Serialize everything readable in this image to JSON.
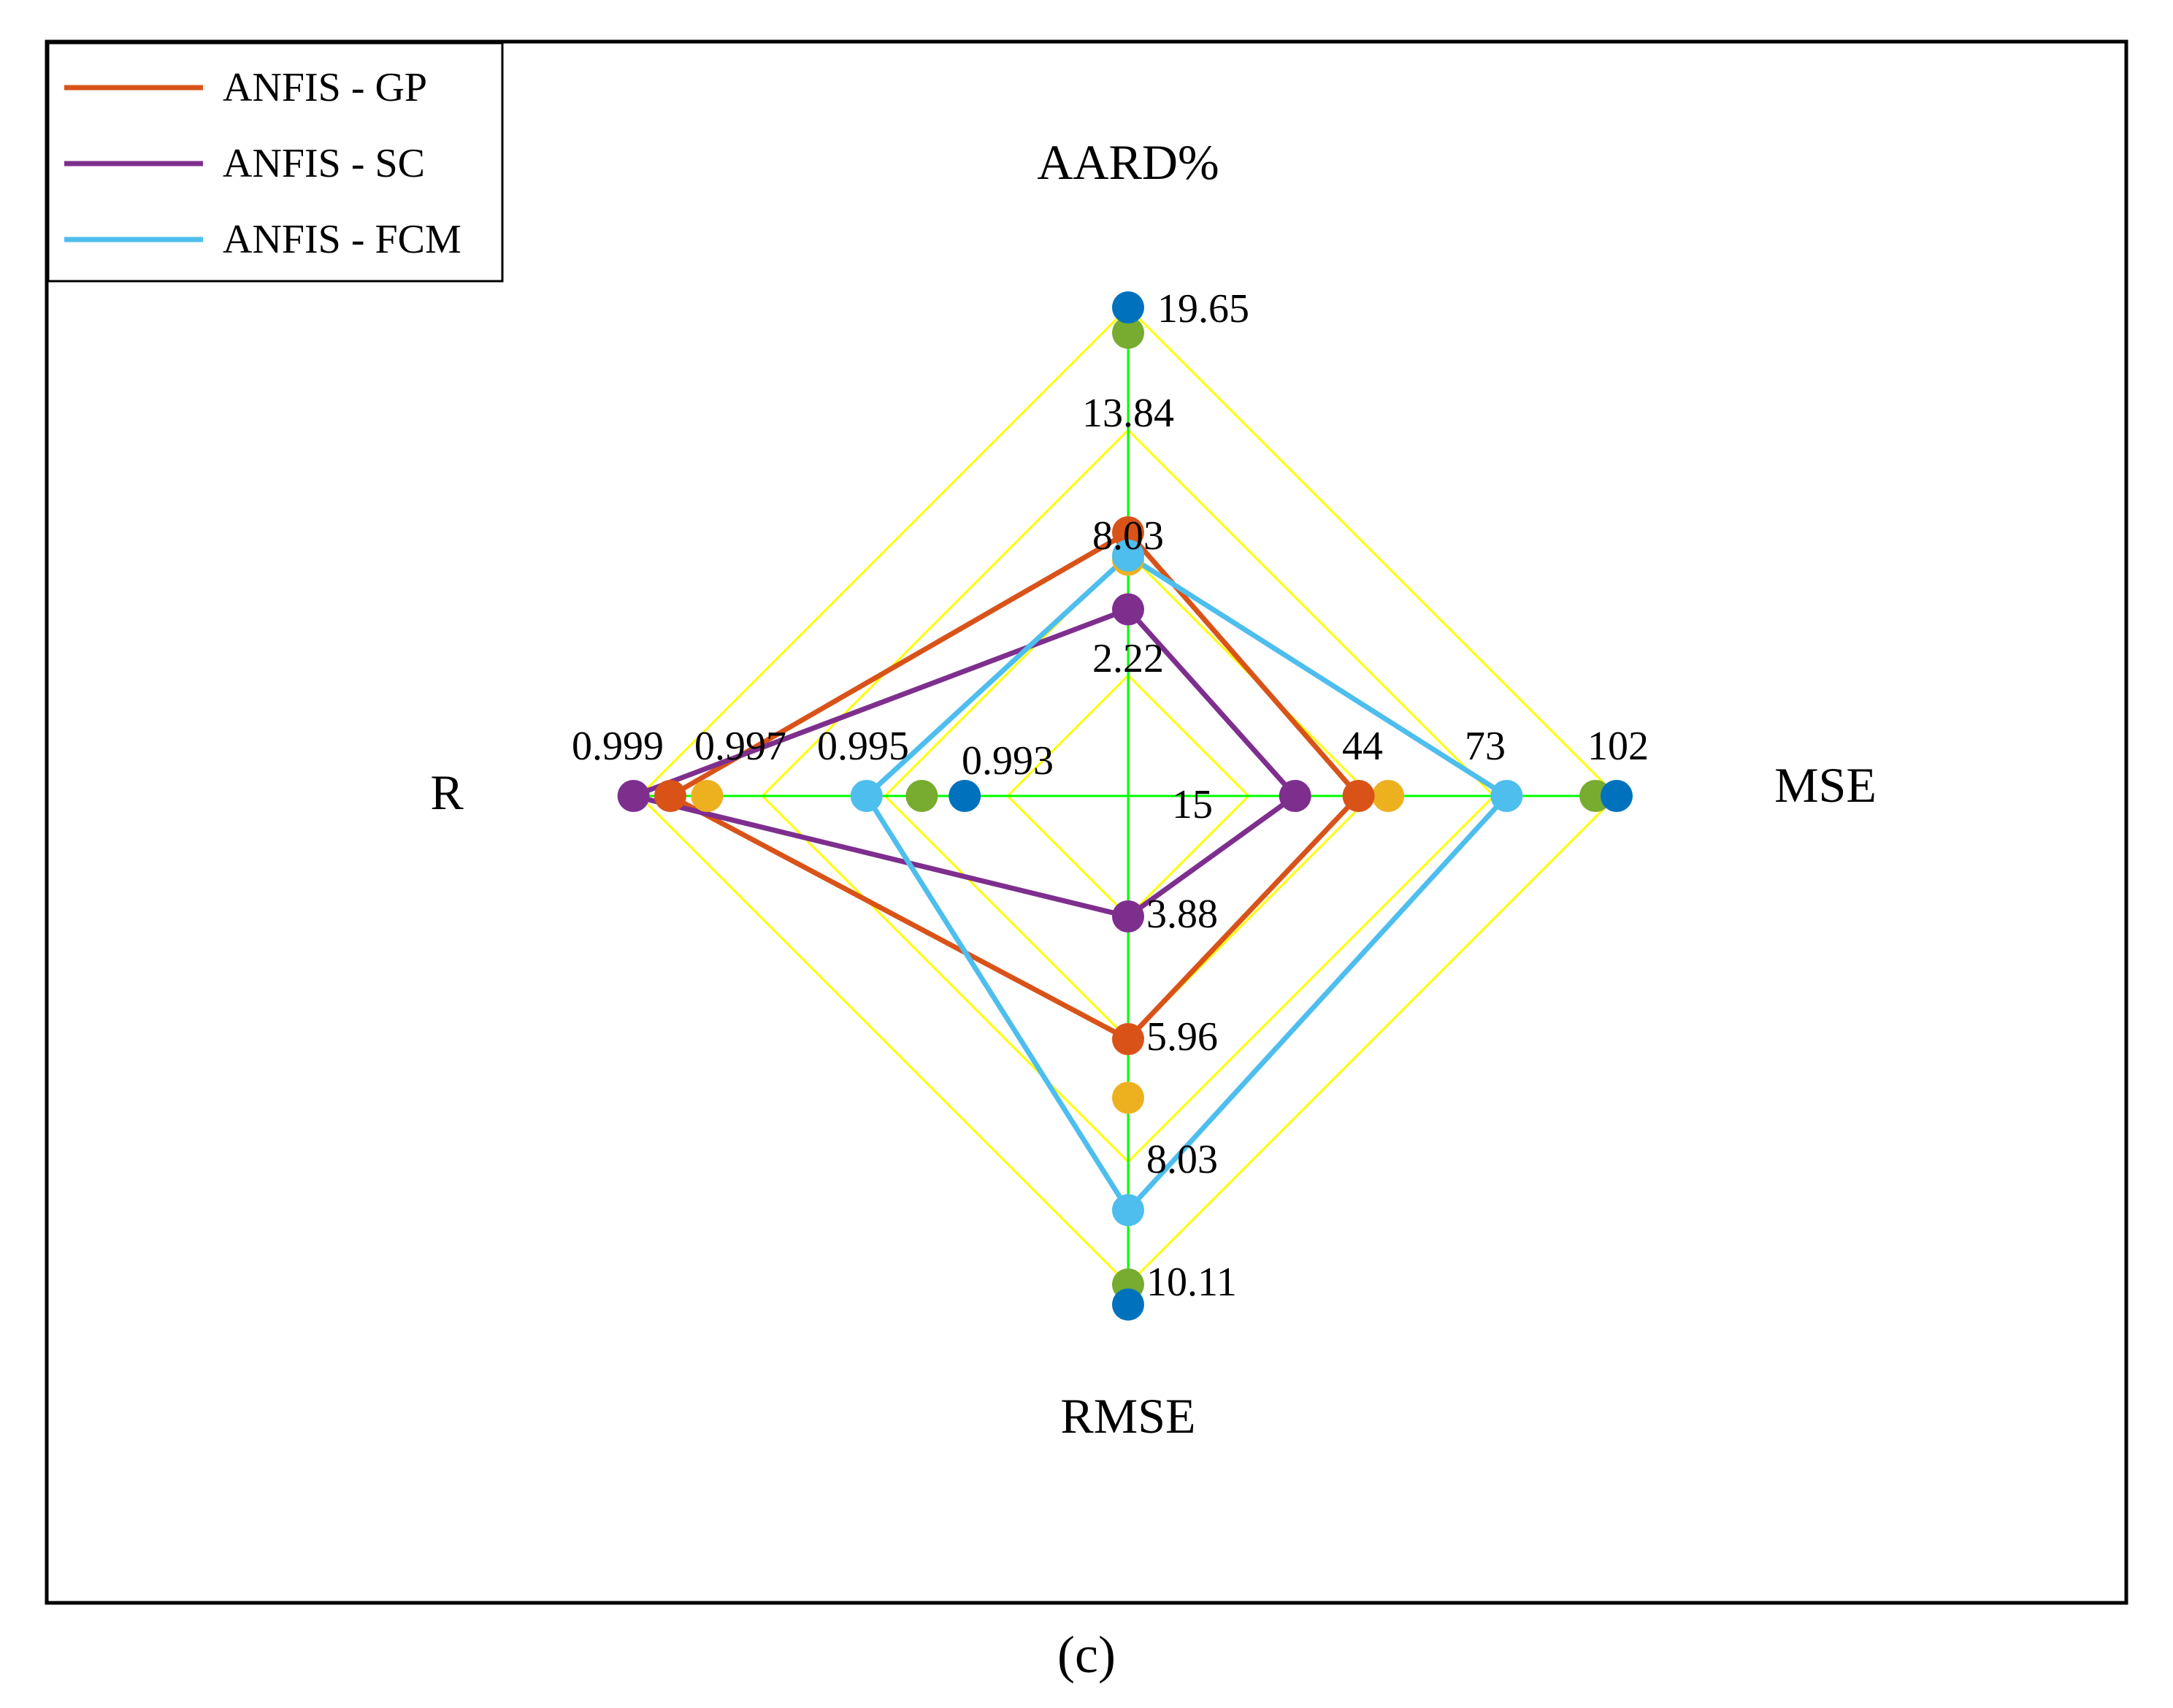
{
  "chart_data": {
    "type": "radar",
    "caption": "(c)",
    "axes": [
      {
        "name": "AARD%",
        "ticks": [
          "2.22",
          "8.03",
          "13.84",
          "19.65"
        ],
        "tick_values": [
          2.22,
          8.03,
          13.84,
          19.65
        ]
      },
      {
        "name": "MSE",
        "ticks": [
          "15",
          "44",
          "73",
          "102"
        ],
        "tick_values": [
          15,
          44,
          73,
          102
        ]
      },
      {
        "name": "RMSE",
        "ticks": [
          "3.88",
          "5.96",
          "8.03",
          "10.11"
        ],
        "tick_values": [
          3.88,
          5.96,
          8.03,
          10.11
        ]
      },
      {
        "name": "R",
        "ticks": [
          "0.993",
          "0.995",
          "0.997",
          "0.999"
        ],
        "tick_values": [
          0.993,
          0.995,
          0.997,
          0.999
        ]
      }
    ],
    "series": [
      {
        "name": "ANFIS - GP",
        "color": "#D95319",
        "show_line": true,
        "values": [
          9.0,
          41.0,
          5.96,
          0.9985
        ]
      },
      {
        "name": "ANFIS - SC",
        "color": "#7E2F8E",
        "show_line": true,
        "values": [
          5.35,
          26.0,
          3.88,
          0.9991
        ]
      },
      {
        "name": "ANFIS - FCM",
        "color": "#4DBEEE",
        "show_line": true,
        "values": [
          7.9,
          76.0,
          8.85,
          0.9953
        ]
      },
      {
        "name": "",
        "color": "#EDB120",
        "show_line": false,
        "values": [
          7.7,
          48.0,
          6.95,
          0.9979
        ]
      },
      {
        "name": "",
        "color": "#77AC30",
        "show_line": false,
        "values": [
          18.45,
          97.0,
          10.11,
          0.9944
        ]
      },
      {
        "name": "",
        "color": "#0072BD",
        "show_line": false,
        "values": [
          19.65,
          102.0,
          10.45,
          0.9937
        ]
      }
    ],
    "grid_color": "#FFFF00",
    "spoke_color": "#00FF00",
    "legend": {
      "placement": "top-left"
    }
  }
}
